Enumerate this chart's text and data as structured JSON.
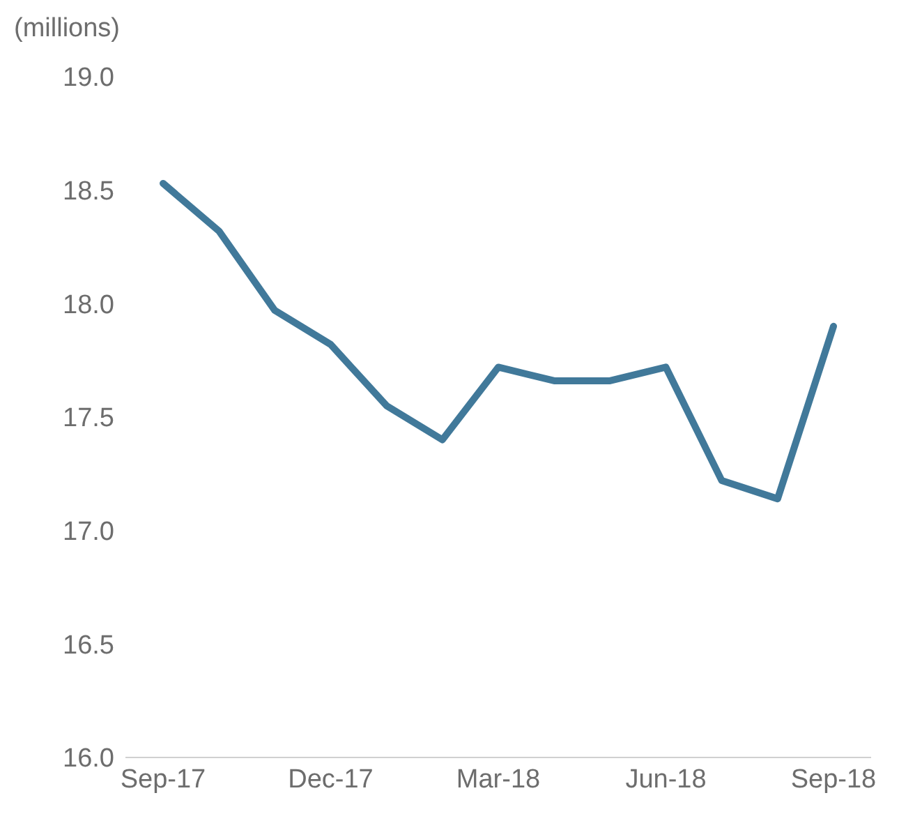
{
  "chart_data": {
    "type": "line",
    "ylabel": "(millions)",
    "categories": [
      "Sep-17",
      null,
      null,
      "Dec-17",
      null,
      null,
      "Mar-18",
      null,
      null,
      "Jun-18",
      null,
      null,
      "Sep-18"
    ],
    "series": [
      {
        "color": "#41799a",
        "values": [
          18.53,
          18.32,
          17.97,
          17.82,
          17.55,
          17.4,
          17.72,
          17.66,
          17.66,
          17.72,
          17.22,
          17.14,
          17.9
        ]
      }
    ],
    "ylim": [
      16.0,
      19.0
    ],
    "yticks": [
      {
        "value": 16,
        "label": "16.0"
      },
      {
        "value": 16.5,
        "label": "16.5"
      },
      {
        "value": 17,
        "label": "17.0"
      },
      {
        "value": 17.5,
        "label": "17.5"
      },
      {
        "value": 18,
        "label": "18.0"
      },
      {
        "value": 18.5,
        "label": "18.5"
      },
      {
        "value": 19,
        "label": "19.0"
      }
    ],
    "grid": false,
    "legend": false,
    "marker": "none",
    "line_style": "solid"
  }
}
